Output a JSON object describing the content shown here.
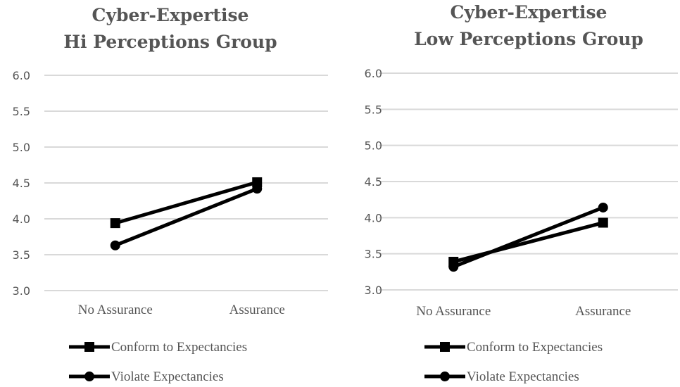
{
  "chart_data": [
    {
      "type": "line",
      "title": [
        "Cyber-Expertise",
        "Hi Perceptions Group"
      ],
      "categories": [
        "No Assurance",
        "Assurance"
      ],
      "ylim": [
        3.0,
        6.0
      ],
      "yticks": [
        "3.0",
        "3.5",
        "4.0",
        "4.5",
        "5.0",
        "5.5",
        "6.0"
      ],
      "grid": true,
      "legend_position": "bottom",
      "series": [
        {
          "name": "Conform to Expectancies",
          "marker": "square",
          "values": [
            3.94,
            4.51
          ]
        },
        {
          "name": "Violate Expectancies",
          "marker": "circle",
          "values": [
            3.63,
            4.42
          ]
        }
      ]
    },
    {
      "type": "line",
      "title": [
        "Cyber-Expertise",
        "Low Perceptions Group"
      ],
      "categories": [
        "No Assurance",
        "Assurance"
      ],
      "ylim": [
        3.0,
        6.0
      ],
      "yticks": [
        "3.0",
        "3.5",
        "4.0",
        "4.5",
        "5.0",
        "5.5",
        "6.0"
      ],
      "grid": true,
      "legend_position": "bottom",
      "series": [
        {
          "name": "Conform to Expectancies",
          "marker": "square",
          "values": [
            3.39,
            3.93
          ]
        },
        {
          "name": "Violate Expectancies",
          "marker": "circle",
          "values": [
            3.32,
            4.14
          ]
        }
      ]
    }
  ],
  "colors": {
    "series_line": "#000000",
    "grid": "#d9d9d9",
    "text": "#555555"
  }
}
